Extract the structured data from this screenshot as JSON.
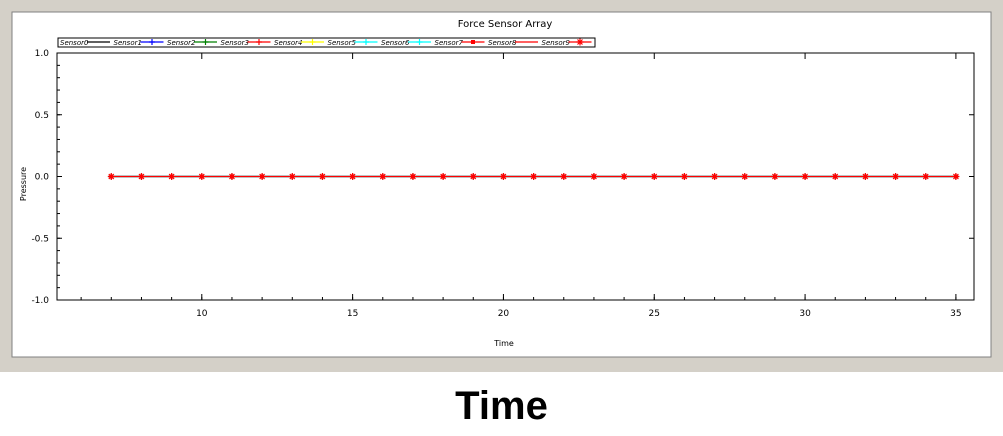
{
  "caption": "Time",
  "chart_data": {
    "type": "line",
    "title": "Force Sensor Array",
    "xlabel": "Time",
    "ylabel": "Pressure",
    "xlim": [
      5.2,
      35.6
    ],
    "ylim": [
      -1.0,
      1.0
    ],
    "xticks": [
      10,
      15,
      20,
      25,
      30,
      35
    ],
    "xtick_labels": [
      "10",
      "15",
      "20",
      "25",
      "30",
      "35"
    ],
    "yticks": [
      1.0,
      0.5,
      0.0,
      -0.5,
      -1.0
    ],
    "ytick_labels": [
      "1.0",
      "0.5",
      "0.0",
      "-0.5",
      "-1.0"
    ],
    "legend_position": "top-left",
    "x": [
      7,
      8,
      9,
      10,
      11,
      12,
      13,
      14,
      15,
      16,
      17,
      18,
      19,
      20,
      21,
      22,
      23,
      24,
      25,
      26,
      27,
      28,
      29,
      30,
      31,
      32,
      33,
      34,
      35
    ],
    "series": [
      {
        "name": "Sensor0",
        "color": "#000000",
        "marker": "none",
        "values": [
          0,
          0,
          0,
          0,
          0,
          0,
          0,
          0,
          0,
          0,
          0,
          0,
          0,
          0,
          0,
          0,
          0,
          0,
          0,
          0,
          0,
          0,
          0,
          0,
          0,
          0,
          0,
          0,
          0
        ]
      },
      {
        "name": "Sensor1",
        "color": "#0000ff",
        "marker": "plus",
        "values": [
          0,
          0,
          0,
          0,
          0,
          0,
          0,
          0,
          0,
          0,
          0,
          0,
          0,
          0,
          0,
          0,
          0,
          0,
          0,
          0,
          0,
          0,
          0,
          0,
          0,
          0,
          0,
          0,
          0
        ]
      },
      {
        "name": "Sensor2",
        "color": "#008000",
        "marker": "plus",
        "values": [
          0,
          0,
          0,
          0,
          0,
          0,
          0,
          0,
          0,
          0,
          0,
          0,
          0,
          0,
          0,
          0,
          0,
          0,
          0,
          0,
          0,
          0,
          0,
          0,
          0,
          0,
          0,
          0,
          0
        ]
      },
      {
        "name": "Sensor3",
        "color": "#ff0000",
        "marker": "plus",
        "values": [
          0,
          0,
          0,
          0,
          0,
          0,
          0,
          0,
          0,
          0,
          0,
          0,
          0,
          0,
          0,
          0,
          0,
          0,
          0,
          0,
          0,
          0,
          0,
          0,
          0,
          0,
          0,
          0,
          0
        ]
      },
      {
        "name": "Sensor4",
        "color": "#ffff00",
        "marker": "plus",
        "values": [
          0,
          0,
          0,
          0,
          0,
          0,
          0,
          0,
          0,
          0,
          0,
          0,
          0,
          0,
          0,
          0,
          0,
          0,
          0,
          0,
          0,
          0,
          0,
          0,
          0,
          0,
          0,
          0,
          0
        ]
      },
      {
        "name": "Sensor5",
        "color": "#00ffff",
        "marker": "plus",
        "values": [
          0,
          0,
          0,
          0,
          0,
          0,
          0,
          0,
          0,
          0,
          0,
          0,
          0,
          0,
          0,
          0,
          0,
          0,
          0,
          0,
          0,
          0,
          0,
          0,
          0,
          0,
          0,
          0,
          0
        ]
      },
      {
        "name": "Sensor6",
        "color": "#00ffff",
        "marker": "plus",
        "values": [
          0,
          0,
          0,
          0,
          0,
          0,
          0,
          0,
          0,
          0,
          0,
          0,
          0,
          0,
          0,
          0,
          0,
          0,
          0,
          0,
          0,
          0,
          0,
          0,
          0,
          0,
          0,
          0,
          0
        ]
      },
      {
        "name": "Sensor7",
        "color": "#ff0000",
        "marker": "square",
        "values": [
          0,
          0,
          0,
          0,
          0,
          0,
          0,
          0,
          0,
          0,
          0,
          0,
          0,
          0,
          0,
          0,
          0,
          0,
          0,
          0,
          0,
          0,
          0,
          0,
          0,
          0,
          0,
          0,
          0
        ]
      },
      {
        "name": "Sensor8",
        "color": "#ff0000",
        "marker": "none",
        "values": [
          0,
          0,
          0,
          0,
          0,
          0,
          0,
          0,
          0,
          0,
          0,
          0,
          0,
          0,
          0,
          0,
          0,
          0,
          0,
          0,
          0,
          0,
          0,
          0,
          0,
          0,
          0,
          0,
          0
        ]
      },
      {
        "name": "Sensor9",
        "color": "#ff0000",
        "marker": "star",
        "values": [
          0,
          0,
          0,
          0,
          0,
          0,
          0,
          0,
          0,
          0,
          0,
          0,
          0,
          0,
          0,
          0,
          0,
          0,
          0,
          0,
          0,
          0,
          0,
          0,
          0,
          0,
          0,
          0,
          0
        ]
      }
    ]
  }
}
